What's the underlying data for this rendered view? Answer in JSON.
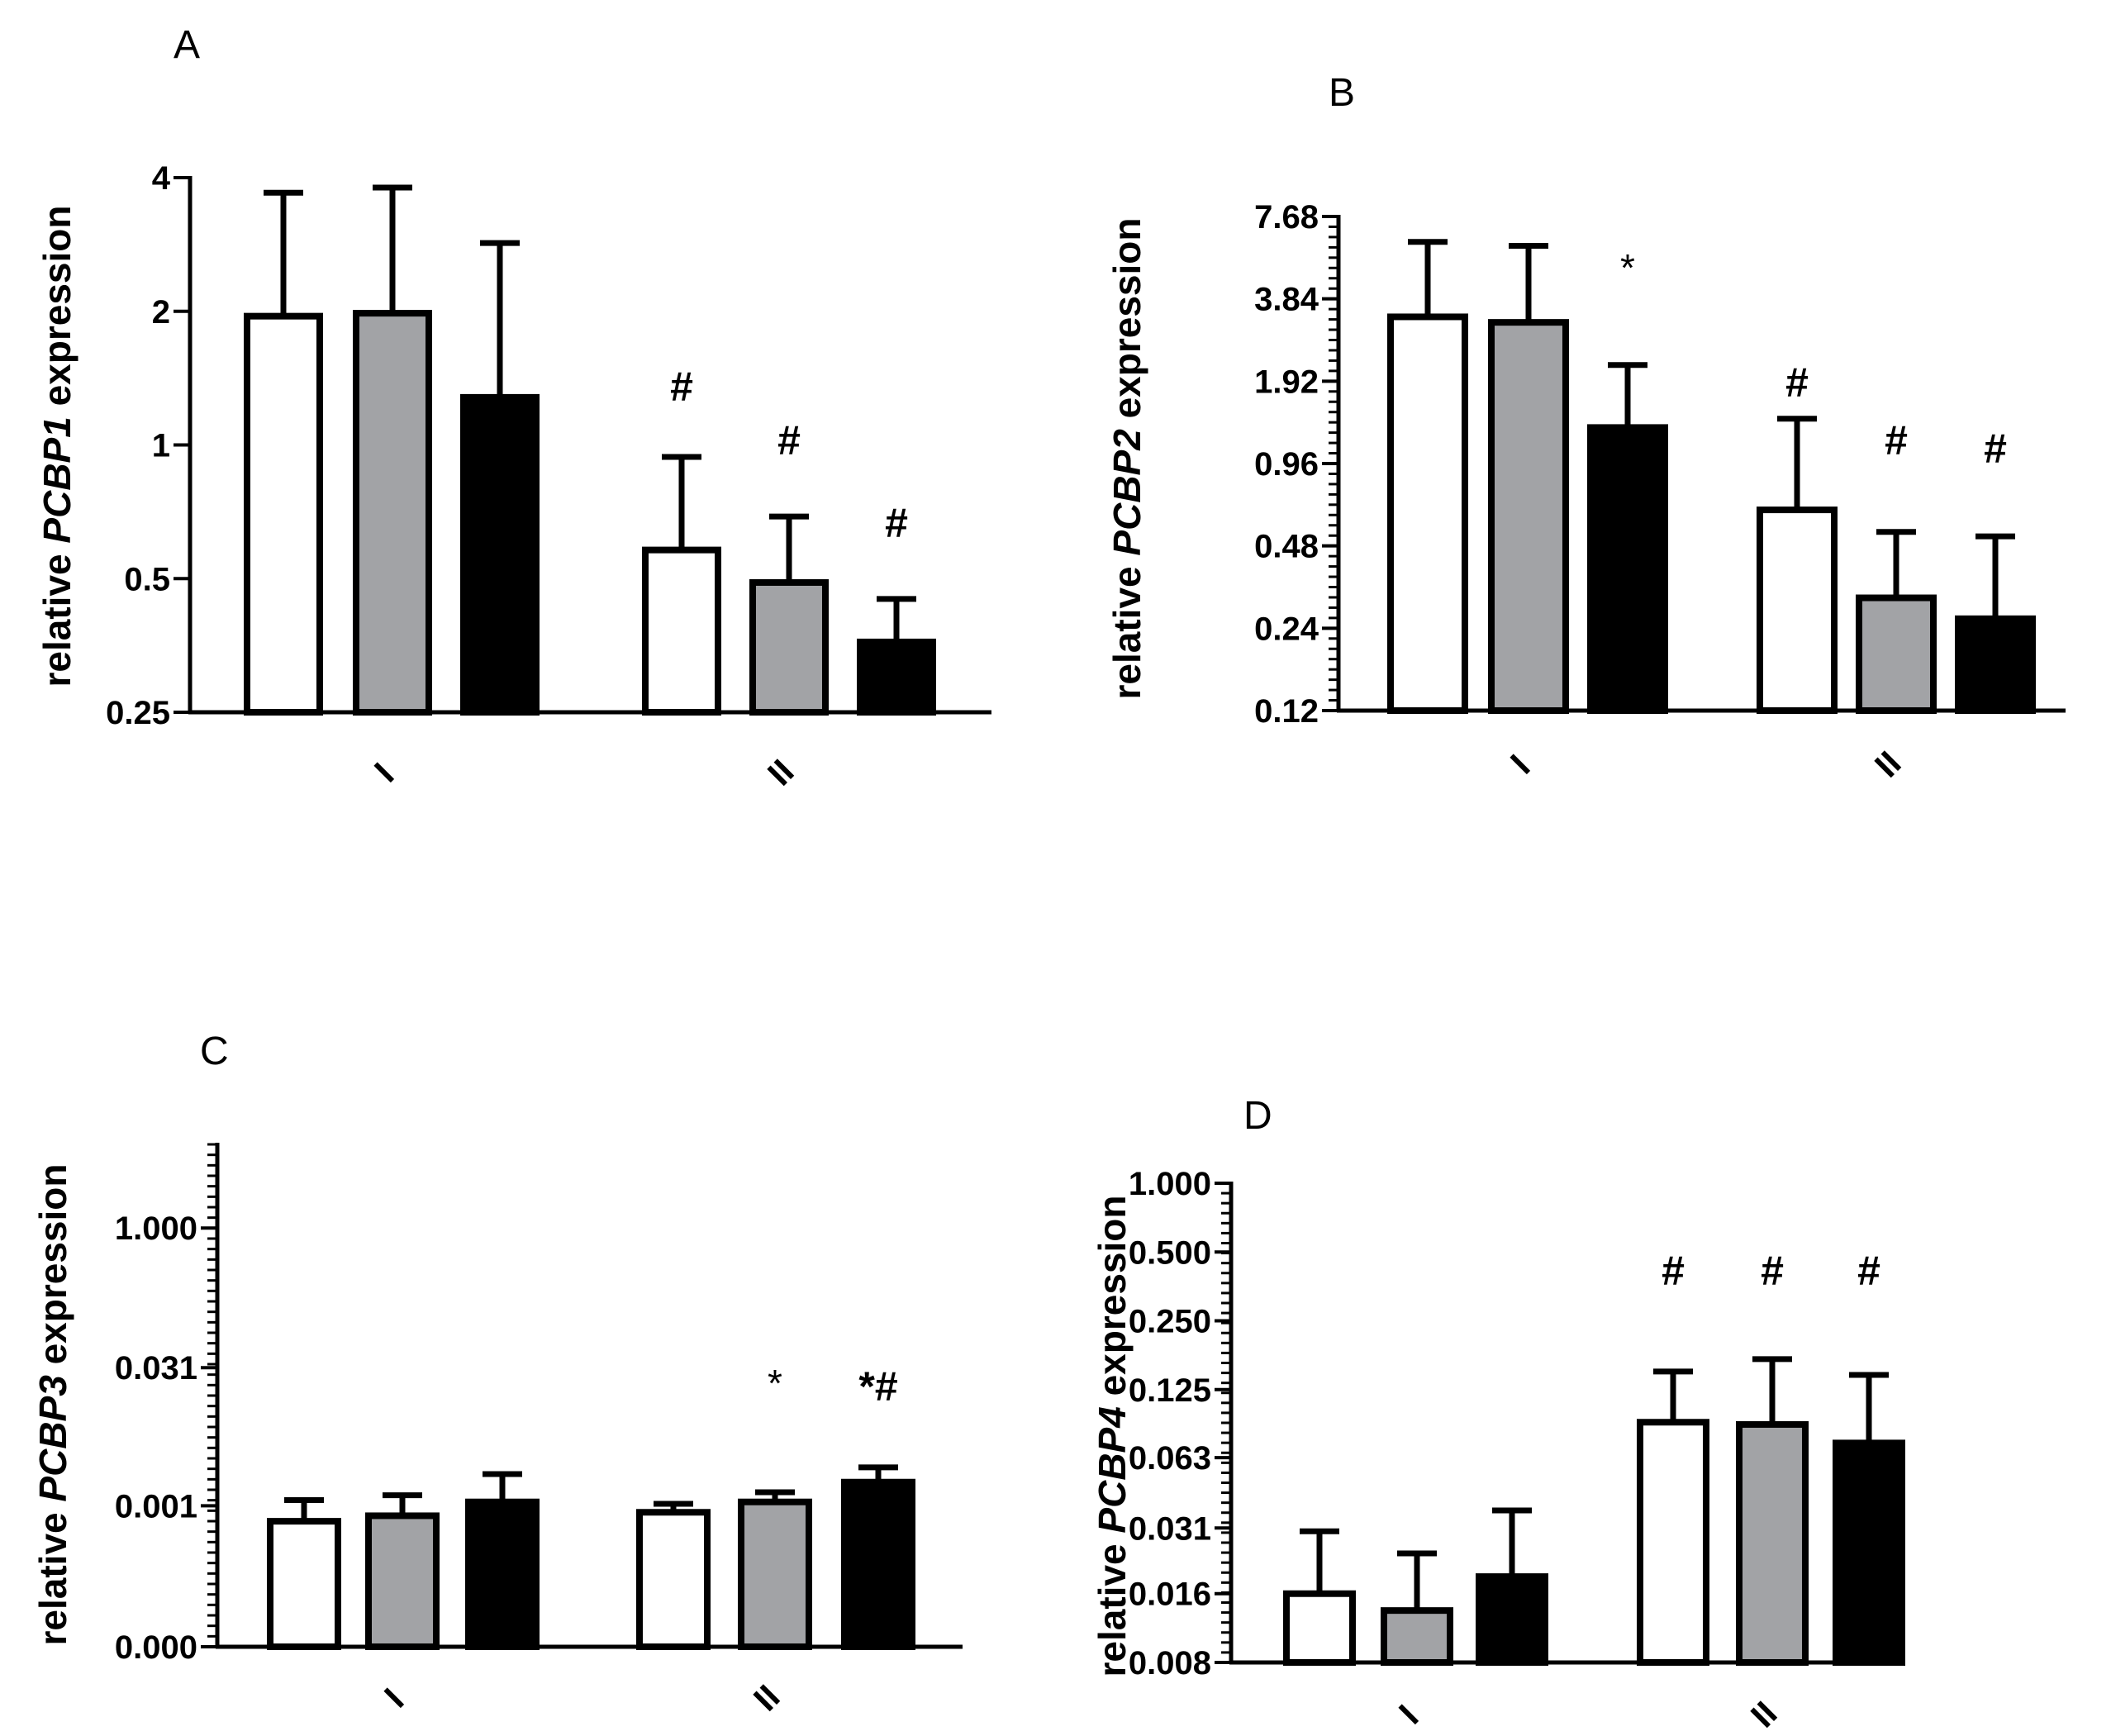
{
  "colors": {
    "white": "#ffffff",
    "grey": "#a2a3a6",
    "black": "#000000"
  },
  "chart_data": [
    {
      "panel": "A",
      "type": "bar",
      "scale": "log2",
      "ylabel_pre": "relative ",
      "ylabel_gene": "PCBP1",
      "ylabel_post": " expression",
      "categories": [
        "I",
        "II"
      ],
      "yticks": [
        0.25,
        0.5,
        1,
        2,
        4
      ],
      "ytick_labels": [
        "0.25",
        "0.5",
        "1",
        "2",
        "4"
      ],
      "ylim": [
        0.25,
        4
      ],
      "minor_ticks": false,
      "series": [
        {
          "name": "white",
          "values": [
            1.95,
            0.58
          ],
          "err_top": [
            3.7,
            0.94
          ]
        },
        {
          "name": "grey",
          "values": [
            1.98,
            0.49
          ],
          "err_top": [
            3.8,
            0.69
          ]
        },
        {
          "name": "black",
          "values": [
            1.28,
            0.36
          ],
          "err_top": [
            2.85,
            0.45
          ]
        }
      ],
      "annotations": [
        [
          "",
          "#"
        ],
        [
          "",
          "#"
        ],
        [
          "",
          "#"
        ]
      ]
    },
    {
      "panel": "B",
      "type": "bar",
      "scale": "log2",
      "ylabel_pre": "relative ",
      "ylabel_gene": "PCBP2",
      "ylabel_post": " expression",
      "categories": [
        "I",
        "II"
      ],
      "yticks": [
        0.12,
        0.24,
        0.48,
        0.96,
        1.92,
        3.84,
        7.68
      ],
      "ytick_labels": [
        "0.12",
        "0.24",
        "0.48",
        "0.96",
        "1.92",
        "3.84",
        "7.68"
      ],
      "ylim": [
        0.12,
        7.68
      ],
      "minor_ticks": true,
      "series": [
        {
          "name": "white",
          "values": [
            3.3,
            0.65
          ],
          "err_top": [
            6.2,
            1.4
          ]
        },
        {
          "name": "grey",
          "values": [
            3.15,
            0.31
          ],
          "err_top": [
            6.0,
            0.54
          ]
        },
        {
          "name": "black",
          "values": [
            1.3,
            0.26
          ],
          "err_top": [
            2.2,
            0.52
          ]
        }
      ],
      "annotations": [
        [
          "",
          "#"
        ],
        [
          "",
          "#"
        ],
        [
          "*",
          "#"
        ]
      ]
    },
    {
      "panel": "C",
      "type": "bar",
      "scale": "log2",
      "ylabel_pre": "relative ",
      "ylabel_gene": "PCBP3",
      "ylabel_post": " expression",
      "categories": [
        "I",
        "II"
      ],
      "yticks": [
        3e-05,
        0.001,
        0.031,
        1.0
      ],
      "ytick_labels": [
        "0.000",
        "0.001",
        "0.031",
        "1.000"
      ],
      "ylim": [
        3e-05,
        8.0
      ],
      "minor_ticks": true,
      "series": [
        {
          "name": "white",
          "values": [
            0.00068,
            0.00085
          ],
          "err_top": [
            0.00115,
            0.00105
          ]
        },
        {
          "name": "grey",
          "values": [
            0.00078,
            0.0011
          ],
          "err_top": [
            0.0013,
            0.0014
          ]
        },
        {
          "name": "black",
          "values": [
            0.0011,
            0.0018
          ],
          "err_top": [
            0.0022,
            0.0026
          ]
        }
      ],
      "annotations": [
        [
          "",
          ""
        ],
        [
          "",
          "*"
        ],
        [
          "",
          "*#"
        ]
      ]
    },
    {
      "panel": "D",
      "type": "bar",
      "scale": "log2",
      "ylabel_pre": "relative ",
      "ylabel_gene": "PCBP4",
      "ylabel_post": " expression",
      "categories": [
        "I",
        "II"
      ],
      "yticks": [
        0.008,
        0.016,
        0.031,
        0.063,
        0.125,
        0.25,
        0.5,
        1.0
      ],
      "ytick_labels": [
        "0.008",
        "0.016",
        "0.031",
        "0.063",
        "0.125",
        "0.250",
        "0.500",
        "1.000"
      ],
      "ylim": [
        0.008,
        1.0
      ],
      "minor_ticks": true,
      "series": [
        {
          "name": "white",
          "values": [
            0.016,
            0.09
          ],
          "err_top": [
            0.03,
            0.15
          ]
        },
        {
          "name": "grey",
          "values": [
            0.0135,
            0.088
          ],
          "err_top": [
            0.024,
            0.17
          ]
        },
        {
          "name": "black",
          "values": [
            0.019,
            0.073
          ],
          "err_top": [
            0.037,
            0.145
          ]
        }
      ],
      "annotations": [
        [
          "",
          "#"
        ],
        [
          "",
          "#"
        ],
        [
          "",
          "#"
        ]
      ]
    }
  ]
}
